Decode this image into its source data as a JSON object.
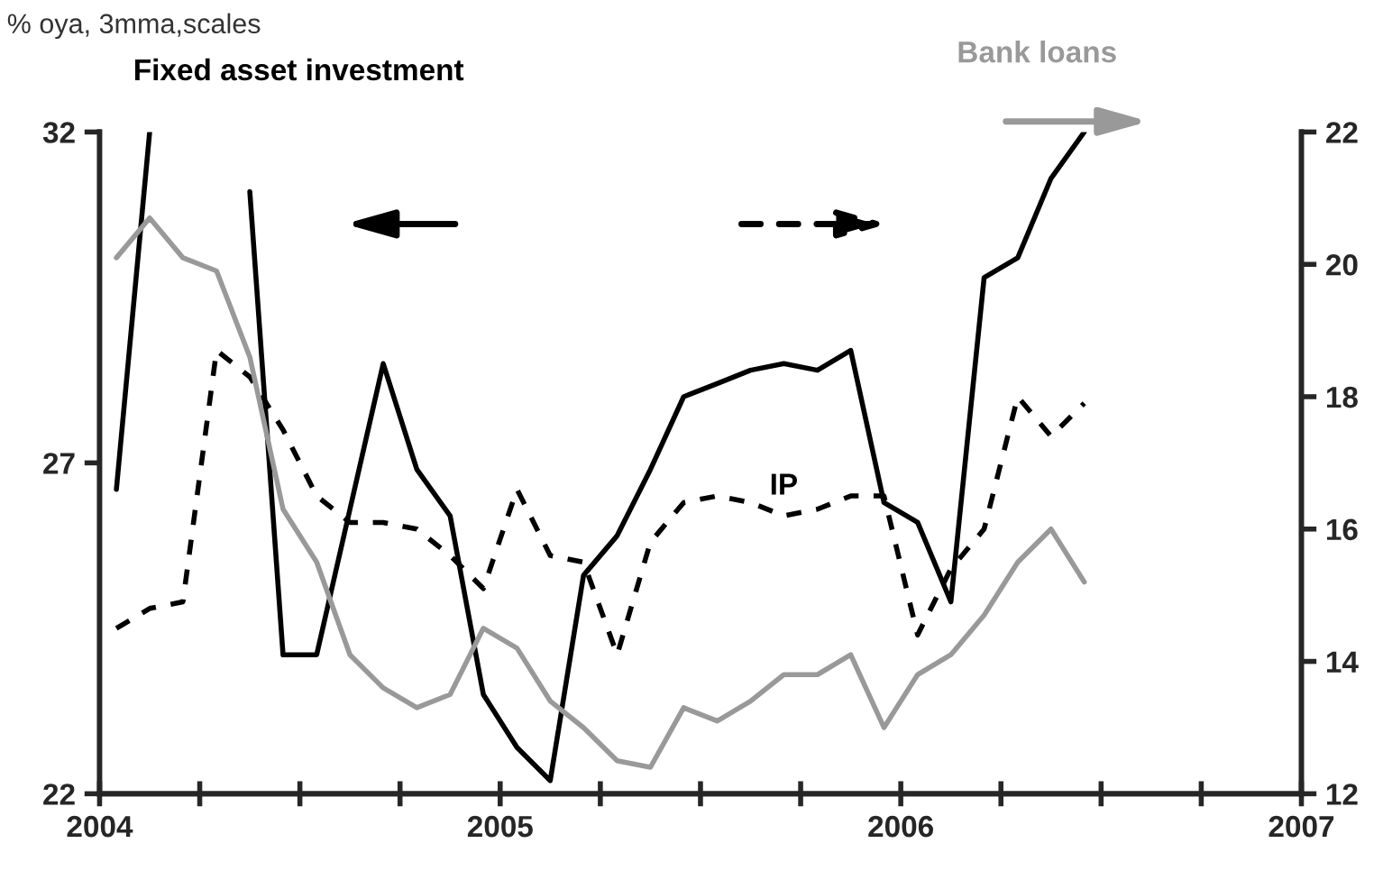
{
  "chart_data": {
    "type": "line",
    "annotations": [
      "% oya, 3mma,scales"
    ],
    "x": [
      2004.042,
      2004.125,
      2004.208,
      2004.292,
      2004.375,
      2004.458,
      2004.542,
      2004.625,
      2004.708,
      2004.792,
      2004.875,
      2004.958,
      2005.042,
      2005.125,
      2005.208,
      2005.292,
      2005.375,
      2005.458,
      2005.542,
      2005.625,
      2005.708,
      2005.792,
      2005.875,
      2005.958,
      2006.042,
      2006.125,
      2006.208,
      2006.292,
      2006.375,
      2006.458
    ],
    "xlim": [
      2004,
      2007
    ],
    "xticks": [
      2004,
      {
        "value": 2004.25,
        "label": null
      },
      {
        "value": 2004.5,
        "label": null
      },
      {
        "value": 2004.75,
        "label": null
      },
      2005,
      {
        "value": 2005.25,
        "label": null
      },
      {
        "value": 2005.5,
        "label": null
      },
      {
        "value": 2005.75,
        "label": null
      },
      2006,
      {
        "value": 2006.25,
        "label": null
      },
      {
        "value": 2006.5,
        "label": null
      },
      {
        "value": 2006.75,
        "label": null
      },
      2007
    ],
    "ylim": [
      22,
      32
    ],
    "yticks": [
      22,
      27,
      32
    ],
    "y2lim": [
      12,
      22
    ],
    "y2ticks": [
      12,
      14,
      16,
      18,
      20,
      22
    ],
    "grid": false,
    "legend": false,
    "series": [
      {
        "name": "Fixed asset investment",
        "color": "#000000",
        "line_style": "solid",
        "axis": "y",
        "values": [
          26.6,
          32,
          null,
          null,
          31.1,
          24.1,
          24.1,
          26.3,
          28.5,
          26.9,
          26.2,
          23.5,
          22.7,
          22.2,
          25.3,
          25.9,
          26.9,
          28.0,
          28.2,
          28.4,
          28.5,
          28.4,
          28.7,
          26.4,
          26.1,
          24.9,
          29.8,
          30.1,
          31.3,
          32
        ]
      },
      {
        "name": "IP",
        "color": "#000000",
        "line_style": "dashed",
        "axis": "y2",
        "values": [
          14.5,
          14.8,
          14.9,
          18.7,
          18.3,
          17.5,
          16.5,
          16.1,
          16.1,
          16.0,
          15.6,
          15.1,
          16.6,
          15.6,
          15.5,
          14.1,
          15.8,
          16.4,
          16.5,
          16.4,
          16.2,
          16.3,
          16.5,
          16.5,
          14.4,
          15.4,
          16.0,
          18.0,
          17.4,
          17.9
        ]
      },
      {
        "name": "Bank loans",
        "color": "#999999",
        "line_style": "solid",
        "axis": "y2",
        "values": [
          20.1,
          20.7,
          20.1,
          19.9,
          18.6,
          16.3,
          15.5,
          14.1,
          13.6,
          13.3,
          13.5,
          14.5,
          14.2,
          13.4,
          13.0,
          12.5,
          12.4,
          13.3,
          13.1,
          13.4,
          13.8,
          13.8,
          14.1,
          13.0,
          13.8,
          14.1,
          14.7,
          15.5,
          16.0,
          15.2
        ]
      }
    ]
  }
}
